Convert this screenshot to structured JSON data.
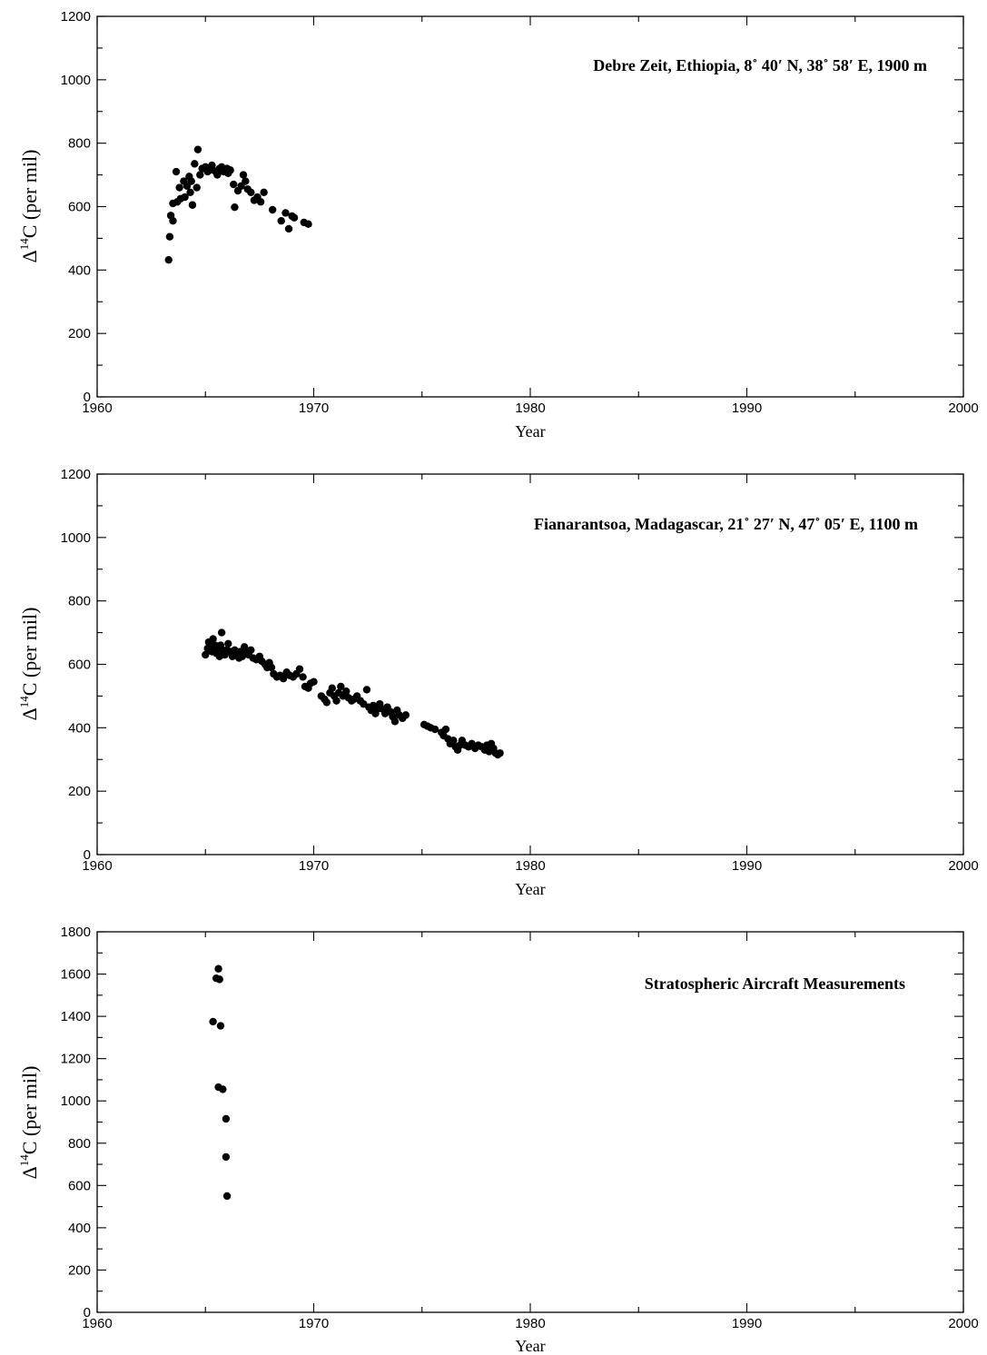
{
  "chart_data": [
    {
      "type": "scatter",
      "title": "Debre Zeit, Ethiopia, 8˚ 40′ N, 38˚ 58′ E, 1900 m",
      "xlabel": "Year",
      "ylabel": "Δ14C (per mil)",
      "ylabel_parts": {
        "prefix": "Δ",
        "sup": "14",
        "suffix": "C (per mil)"
      },
      "xlim": [
        1960,
        2000
      ],
      "ylim": [
        0,
        1200
      ],
      "xticks": [
        "1960",
        "1970",
        "1980",
        "1990",
        "2000"
      ],
      "yticks": [
        "0",
        "200",
        "400",
        "600",
        "800",
        "1000",
        "1200"
      ],
      "grid": false,
      "points": [
        [
          1963.3,
          432
        ],
        [
          1963.35,
          505
        ],
        [
          1963.4,
          572
        ],
        [
          1963.5,
          555
        ],
        [
          1963.5,
          610
        ],
        [
          1963.65,
          710
        ],
        [
          1963.7,
          615
        ],
        [
          1963.8,
          660
        ],
        [
          1963.85,
          625
        ],
        [
          1964.0,
          680
        ],
        [
          1964.05,
          630
        ],
        [
          1964.15,
          665
        ],
        [
          1964.25,
          695
        ],
        [
          1964.3,
          645
        ],
        [
          1964.35,
          680
        ],
        [
          1964.4,
          605
        ],
        [
          1964.5,
          735
        ],
        [
          1964.6,
          660
        ],
        [
          1964.65,
          780
        ],
        [
          1964.75,
          700
        ],
        [
          1964.85,
          720
        ],
        [
          1965.0,
          725
        ],
        [
          1965.1,
          710
        ],
        [
          1965.2,
          715
        ],
        [
          1965.3,
          730
        ],
        [
          1965.45,
          712
        ],
        [
          1965.55,
          700
        ],
        [
          1965.65,
          720
        ],
        [
          1965.75,
          725
        ],
        [
          1965.85,
          710
        ],
        [
          1966.0,
          720
        ],
        [
          1966.05,
          705
        ],
        [
          1966.15,
          715
        ],
        [
          1966.3,
          670
        ],
        [
          1966.35,
          598
        ],
        [
          1966.5,
          650
        ],
        [
          1966.65,
          665
        ],
        [
          1966.75,
          700
        ],
        [
          1966.85,
          680
        ],
        [
          1966.95,
          655
        ],
        [
          1967.1,
          645
        ],
        [
          1967.25,
          620
        ],
        [
          1967.4,
          630
        ],
        [
          1967.55,
          615
        ],
        [
          1967.7,
          645
        ],
        [
          1968.1,
          590
        ],
        [
          1968.5,
          555
        ],
        [
          1968.7,
          580
        ],
        [
          1968.85,
          530
        ],
        [
          1969.0,
          570
        ],
        [
          1969.1,
          565
        ],
        [
          1969.55,
          550
        ],
        [
          1969.75,
          545
        ]
      ]
    },
    {
      "type": "scatter",
      "title": "Fianarantsoa, Madagascar, 21˚ 27′ N, 47˚ 05′ E, 1100 m",
      "xlabel": "Year",
      "ylabel": "Δ14C (per mil)",
      "ylabel_parts": {
        "prefix": "Δ",
        "sup": "14",
        "suffix": "C (per mil)"
      },
      "xlim": [
        1960,
        2000
      ],
      "ylim": [
        0,
        1200
      ],
      "xticks": [
        "1960",
        "1970",
        "1980",
        "1990",
        "2000"
      ],
      "yticks": [
        "0",
        "200",
        "400",
        "600",
        "800",
        "1000",
        "1200"
      ],
      "grid": false,
      "points": [
        [
          1965.0,
          630
        ],
        [
          1965.1,
          650
        ],
        [
          1965.15,
          670
        ],
        [
          1965.25,
          655
        ],
        [
          1965.3,
          640
        ],
        [
          1965.35,
          680
        ],
        [
          1965.45,
          660
        ],
        [
          1965.5,
          635
        ],
        [
          1965.55,
          650
        ],
        [
          1965.65,
          625
        ],
        [
          1965.7,
          660
        ],
        [
          1965.75,
          700
        ],
        [
          1965.8,
          645
        ],
        [
          1965.9,
          630
        ],
        [
          1966.0,
          645
        ],
        [
          1966.05,
          665
        ],
        [
          1966.15,
          640
        ],
        [
          1966.25,
          625
        ],
        [
          1966.35,
          645
        ],
        [
          1966.45,
          630
        ],
        [
          1966.55,
          620
        ],
        [
          1966.6,
          640
        ],
        [
          1966.7,
          625
        ],
        [
          1966.8,
          655
        ],
        [
          1966.9,
          640
        ],
        [
          1967.0,
          630
        ],
        [
          1967.1,
          645
        ],
        [
          1967.2,
          620
        ],
        [
          1967.35,
          615
        ],
        [
          1967.5,
          625
        ],
        [
          1967.6,
          610
        ],
        [
          1967.75,
          600
        ],
        [
          1967.85,
          590
        ],
        [
          1967.95,
          605
        ],
        [
          1968.05,
          590
        ],
        [
          1968.15,
          570
        ],
        [
          1968.3,
          560
        ],
        [
          1968.45,
          565
        ],
        [
          1968.6,
          555
        ],
        [
          1968.75,
          575
        ],
        [
          1968.9,
          565
        ],
        [
          1969.05,
          560
        ],
        [
          1969.2,
          570
        ],
        [
          1969.35,
          585
        ],
        [
          1969.5,
          560
        ],
        [
          1969.6,
          530
        ],
        [
          1969.75,
          525
        ],
        [
          1969.85,
          540
        ],
        [
          1970.0,
          545
        ],
        [
          1970.35,
          500
        ],
        [
          1970.5,
          490
        ],
        [
          1970.6,
          480
        ],
        [
          1970.75,
          510
        ],
        [
          1970.85,
          525
        ],
        [
          1970.95,
          500
        ],
        [
          1971.05,
          485
        ],
        [
          1971.15,
          510
        ],
        [
          1971.25,
          530
        ],
        [
          1971.35,
          500
        ],
        [
          1971.5,
          515
        ],
        [
          1971.6,
          495
        ],
        [
          1971.75,
          485
        ],
        [
          1971.85,
          490
        ],
        [
          1972.0,
          500
        ],
        [
          1972.15,
          485
        ],
        [
          1972.3,
          475
        ],
        [
          1972.45,
          520
        ],
        [
          1972.55,
          465
        ],
        [
          1972.65,
          455
        ],
        [
          1972.75,
          470
        ],
        [
          1972.85,
          445
        ],
        [
          1972.95,
          460
        ],
        [
          1973.05,
          475
        ],
        [
          1973.15,
          460
        ],
        [
          1973.3,
          445
        ],
        [
          1973.4,
          465
        ],
        [
          1973.55,
          450
        ],
        [
          1973.65,
          435
        ],
        [
          1973.75,
          420
        ],
        [
          1973.85,
          455
        ],
        [
          1973.95,
          440
        ],
        [
          1974.1,
          430
        ],
        [
          1974.25,
          440
        ],
        [
          1975.1,
          410
        ],
        [
          1975.25,
          405
        ],
        [
          1975.4,
          400
        ],
        [
          1975.6,
          395
        ],
        [
          1975.9,
          385
        ],
        [
          1976.0,
          375
        ],
        [
          1976.1,
          395
        ],
        [
          1976.2,
          365
        ],
        [
          1976.3,
          350
        ],
        [
          1976.45,
          360
        ],
        [
          1976.55,
          340
        ],
        [
          1976.65,
          330
        ],
        [
          1976.75,
          345
        ],
        [
          1976.85,
          360
        ],
        [
          1977.0,
          345
        ],
        [
          1977.15,
          340
        ],
        [
          1977.3,
          350
        ],
        [
          1977.45,
          335
        ],
        [
          1977.6,
          345
        ],
        [
          1977.75,
          340
        ],
        [
          1977.9,
          330
        ],
        [
          1978.0,
          345
        ],
        [
          1978.1,
          325
        ],
        [
          1978.2,
          350
        ],
        [
          1978.3,
          335
        ],
        [
          1978.4,
          320
        ],
        [
          1978.5,
          315
        ],
        [
          1978.6,
          320
        ]
      ]
    },
    {
      "type": "scatter",
      "title": "Stratospheric Aircraft Measurements",
      "xlabel": "Year",
      "ylabel": "Δ14C (per mil)",
      "ylabel_parts": {
        "prefix": "Δ",
        "sup": "14",
        "suffix": "C (per mil)"
      },
      "xlim": [
        1960,
        2000
      ],
      "ylim": [
        0,
        1800
      ],
      "xticks": [
        "1960",
        "1970",
        "1980",
        "1990",
        "2000"
      ],
      "yticks": [
        "0",
        "200",
        "400",
        "600",
        "800",
        "1000",
        "1200",
        "1400",
        "1600",
        "1800"
      ],
      "grid": false,
      "points": [
        [
          1965.35,
          1375
        ],
        [
          1965.5,
          1580
        ],
        [
          1965.6,
          1625
        ],
        [
          1965.65,
          1575
        ],
        [
          1965.7,
          1355
        ],
        [
          1965.6,
          1065
        ],
        [
          1965.8,
          1055
        ],
        [
          1965.95,
          915
        ],
        [
          1965.95,
          735
        ],
        [
          1966.0,
          550
        ]
      ]
    }
  ]
}
